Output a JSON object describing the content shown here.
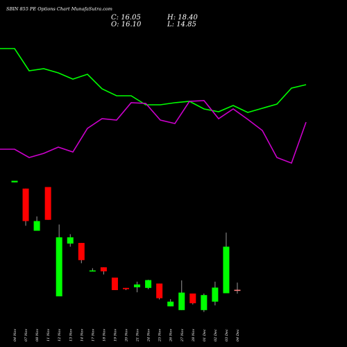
{
  "header": {
    "title": "SBIN 855 PE Options Chart MunafaSutra.com",
    "close": "C: 16.05",
    "open": "O: 16.10",
    "high": "H: 18.40",
    "low": "L: 14.85"
  },
  "colors": {
    "background": "#000000",
    "up": "#00ff00",
    "down": "#ff0000",
    "doji": "#ff7f7f",
    "wick": "#999999",
    "line_green": "#00ff00",
    "line_magenta": "#cc00cc",
    "text": "#ffffff"
  },
  "chart_data": {
    "type": "candlestick",
    "categories": [
      "04 Nov",
      "07 Nov",
      "08 Nov",
      "11 Nov",
      "12 Nov",
      "13 Nov",
      "14 Nov",
      "17 Nov",
      "18 Nov",
      "19 Nov",
      "20 Nov",
      "21 Nov",
      "24 Nov",
      "25 Nov",
      "26 Nov",
      "27 Nov",
      "28 Nov",
      "01 Dec",
      "02 Dec",
      "03 Dec",
      "04 Dec"
    ],
    "candles": [
      {
        "open": 50.5,
        "high": 51.0,
        "low": 50.5,
        "close": 51.0
      },
      {
        "open": 48.5,
        "high": 48.5,
        "low": 36.6,
        "close": 38.1
      },
      {
        "open": 35.0,
        "high": 39.6,
        "low": 35.0,
        "close": 38.1
      },
      {
        "open": 49.0,
        "high": 49.0,
        "low": 38.5,
        "close": 38.5
      },
      {
        "open": 14.0,
        "high": 37.0,
        "low": 14.0,
        "close": 32.9
      },
      {
        "open": 30.9,
        "high": 33.9,
        "low": 29.9,
        "close": 32.9
      },
      {
        "open": 31.1,
        "high": 31.1,
        "low": 24.6,
        "close": 25.6
      },
      {
        "open": 22.0,
        "high": 23.0,
        "low": 22.0,
        "close": 22.3
      },
      {
        "open": 23.3,
        "high": 23.3,
        "low": 21.0,
        "close": 22.0
      },
      {
        "open": 20.0,
        "high": 20.0,
        "low": 16.0,
        "close": 16.0
      },
      {
        "open": 16.7,
        "high": 16.7,
        "low": 16.0,
        "close": 16.3
      },
      {
        "open": 16.9,
        "high": 18.7,
        "low": 15.3,
        "close": 17.8
      },
      {
        "open": 16.7,
        "high": 19.3,
        "low": 16.3,
        "close": 19.2
      },
      {
        "open": 18.1,
        "high": 18.1,
        "low": 13.0,
        "close": 13.4
      },
      {
        "open": 10.8,
        "high": 13.1,
        "low": 10.8,
        "close": 12.3
      },
      {
        "open": 9.6,
        "high": 19.1,
        "low": 9.6,
        "close": 15.2
      },
      {
        "open": 14.9,
        "high": 14.9,
        "low": 11.4,
        "close": 11.8
      },
      {
        "open": 9.6,
        "high": 14.9,
        "low": 9.0,
        "close": 14.4
      },
      {
        "open": 12.3,
        "high": 18.7,
        "low": 11.1,
        "close": 16.8
      },
      {
        "open": 15.0,
        "high": 34.4,
        "low": 15.0,
        "close": 29.9
      },
      {
        "open": 16.1,
        "high": 18.4,
        "low": 14.85,
        "close": 16.05
      }
    ]
  }
}
